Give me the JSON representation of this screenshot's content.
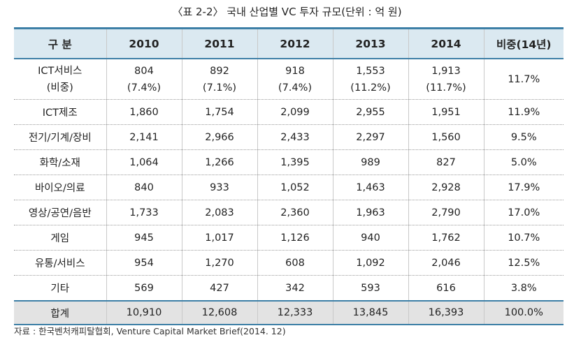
{
  "title": "〈표 2-2〉 국내 산업별 VC 투자 규모(단위 : 억 원)",
  "header": {
    "category": "구 분",
    "years": [
      "2010",
      "2011",
      "2012",
      "2013",
      "2014"
    ],
    "share": "비중(14년)"
  },
  "rows": [
    {
      "label": "ICT서비스",
      "sublabel": "(비중)",
      "values": [
        "804",
        "892",
        "918",
        "1,553",
        "1,913"
      ],
      "ratios": [
        "(7.4%)",
        "(7.1%)",
        "(7.4%)",
        "(11.2%)",
        "(11.7%)"
      ],
      "share": "11.7%"
    },
    {
      "label": "ICT제조",
      "values": [
        "1,860",
        "1,754",
        "2,099",
        "2,955",
        "1,951"
      ],
      "share": "11.9%"
    },
    {
      "label": "전기/기계/장비",
      "values": [
        "2,141",
        "2,966",
        "2,433",
        "2,297",
        "1,560"
      ],
      "share": "9.5%"
    },
    {
      "label": "화학/소재",
      "values": [
        "1,064",
        "1,266",
        "1,395",
        "989",
        "827"
      ],
      "share": "5.0%"
    },
    {
      "label": "바이오/의료",
      "values": [
        "840",
        "933",
        "1,052",
        "1,463",
        "2,928"
      ],
      "share": "17.9%"
    },
    {
      "label": "영상/공연/음반",
      "values": [
        "1,733",
        "2,083",
        "2,360",
        "1,963",
        "2,790"
      ],
      "share": "17.0%"
    },
    {
      "label": "게임",
      "values": [
        "945",
        "1,017",
        "1,126",
        "940",
        "1,762"
      ],
      "share": "10.7%"
    },
    {
      "label": "유통/서비스",
      "values": [
        "954",
        "1,270",
        "608",
        "1,092",
        "2,046"
      ],
      "share": "12.5%"
    },
    {
      "label": "기타",
      "values": [
        "569",
        "427",
        "342",
        "593",
        "616"
      ],
      "share": "3.8%"
    }
  ],
  "total": {
    "label": "합계",
    "values": [
      "10,910",
      "12,608",
      "12,333",
      "13,845",
      "16,393"
    ],
    "share": "100.0%"
  },
  "source": "자료 : 한국벤처캐피탈협회, Venture Capital Market Brief(2014. 12)",
  "colors": {
    "accent": "#3d7fa6",
    "header_bg": "#dbe9f1",
    "total_bg": "#e3e3e3"
  }
}
